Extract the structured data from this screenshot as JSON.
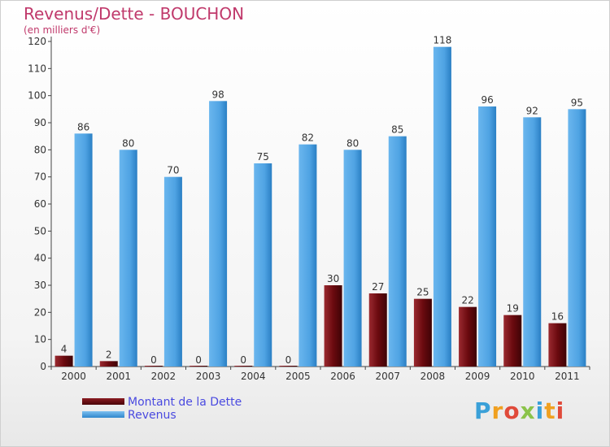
{
  "title": "Revenus/Dette - BOUCHON",
  "subtitle": "(en milliers d'€)",
  "logo_text": "Proxiti",
  "colors": {
    "dette": "#6b0a0f",
    "revenus": "#4fa3e3",
    "title": "#c0396b",
    "legend_text": "#4a4ae0"
  },
  "legend": [
    {
      "label": "Montant de la Dette",
      "color": "#6b0a0f"
    },
    {
      "label": "Revenus",
      "color": "#4fa3e3"
    }
  ],
  "chart_data": {
    "type": "bar",
    "categories": [
      "2000",
      "2001",
      "2002",
      "2003",
      "2004",
      "2005",
      "2006",
      "2007",
      "2008",
      "2009",
      "2010",
      "2011"
    ],
    "series": [
      {
        "name": "Montant de la Dette",
        "values": [
          4,
          2,
          0,
          0,
          0,
          0,
          30,
          27,
          25,
          22,
          19,
          16
        ]
      },
      {
        "name": "Revenus",
        "values": [
          86,
          80,
          70,
          98,
          75,
          82,
          80,
          85,
          118,
          96,
          92,
          95
        ]
      }
    ],
    "ylim": [
      0,
      120
    ],
    "yticks": [
      0,
      10,
      20,
      30,
      40,
      50,
      60,
      70,
      80,
      90,
      100,
      110,
      120
    ],
    "grid": false,
    "legend_position": "bottom-left"
  }
}
